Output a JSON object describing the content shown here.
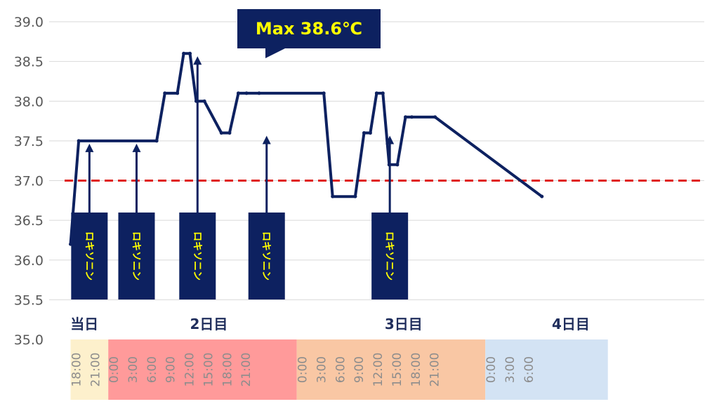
{
  "chart_data": {
    "type": "line",
    "title": "",
    "xlabel": "",
    "ylabel": "",
    "ylim": [
      35.0,
      39.0
    ],
    "yticks": [
      "35.0",
      "35.5",
      "36.0",
      "36.5",
      "37.0",
      "37.5",
      "38.0",
      "38.5",
      "39.0"
    ],
    "xlim_hours": [
      17,
      102.5
    ],
    "threshold": {
      "value": 37.0,
      "color": "#e0201c"
    },
    "line_color": "#0d2160",
    "series": [
      {
        "name": "",
        "x_hours": [
          17,
          18.3,
          30.7,
          32,
          34,
          35,
          36,
          37,
          38.3,
          41,
          42.3,
          43.7,
          45,
          47,
          57.3,
          58.7,
          62.3,
          63.7,
          64.7,
          65.7,
          66.7,
          67.7,
          69,
          70.3,
          71.3,
          75,
          92
        ],
        "values": [
          36.2,
          37.5,
          37.5,
          38.1,
          38.1,
          38.6,
          38.6,
          38.0,
          38.0,
          37.6,
          37.6,
          38.1,
          38.1,
          38.1,
          38.1,
          36.8,
          36.8,
          37.6,
          37.6,
          38.1,
          38.1,
          37.2,
          37.2,
          37.8,
          37.8,
          37.8,
          36.8
        ]
      }
    ],
    "medications": [
      {
        "label": "ロキソニン",
        "hour": 20,
        "temp": 37.5
      },
      {
        "label": "ロキソニン",
        "hour": 27.5,
        "temp": 37.5
      },
      {
        "label": "ロキソニン",
        "hour": 37.2,
        "temp": 38.6
      },
      {
        "label": "ロキソニン",
        "hour": 48.2,
        "temp": 37.6
      },
      {
        "label": "ロキソニン",
        "hour": 67.8,
        "temp": 37.6
      }
    ],
    "annotation": {
      "text": "Max 38.6℃",
      "hour": 37.2
    },
    "day_labels": [
      {
        "text": "当日",
        "hour": 19.2
      },
      {
        "text": "2日目",
        "hour": 39
      },
      {
        "text": "3日目",
        "hour": 70
      },
      {
        "text": "4日目",
        "hour": 96.6
      }
    ],
    "time_bands": [
      {
        "start": 17,
        "end": 23,
        "color": "#fdf0cc",
        "ticks": [
          "18:00",
          "21:00"
        ],
        "tick_hours": [
          18,
          21
        ]
      },
      {
        "start": 23,
        "end": 53,
        "color": "#ff9a9a",
        "ticks": [
          "0:00",
          "3:00",
          "6:00",
          "9:00",
          "12:00",
          "15:00",
          "18:00",
          "21:00"
        ],
        "tick_hours": [
          24,
          27,
          30,
          33,
          36,
          39,
          42,
          45
        ]
      },
      {
        "start": 53,
        "end": 83,
        "color": "#f9c7a4",
        "ticks": [
          "0:00",
          "3:00",
          "6:00",
          "9:00",
          "12:00",
          "15:00",
          "18:00",
          "21:00"
        ],
        "tick_hours": [
          54,
          57,
          60,
          63,
          66,
          69,
          72,
          75
        ]
      },
      {
        "start": 83,
        "end": 102.5,
        "color": "#d3e3f4",
        "ticks": [
          "0:00",
          "3:00",
          "6:00"
        ],
        "tick_hours": [
          84,
          87,
          90
        ]
      }
    ]
  }
}
